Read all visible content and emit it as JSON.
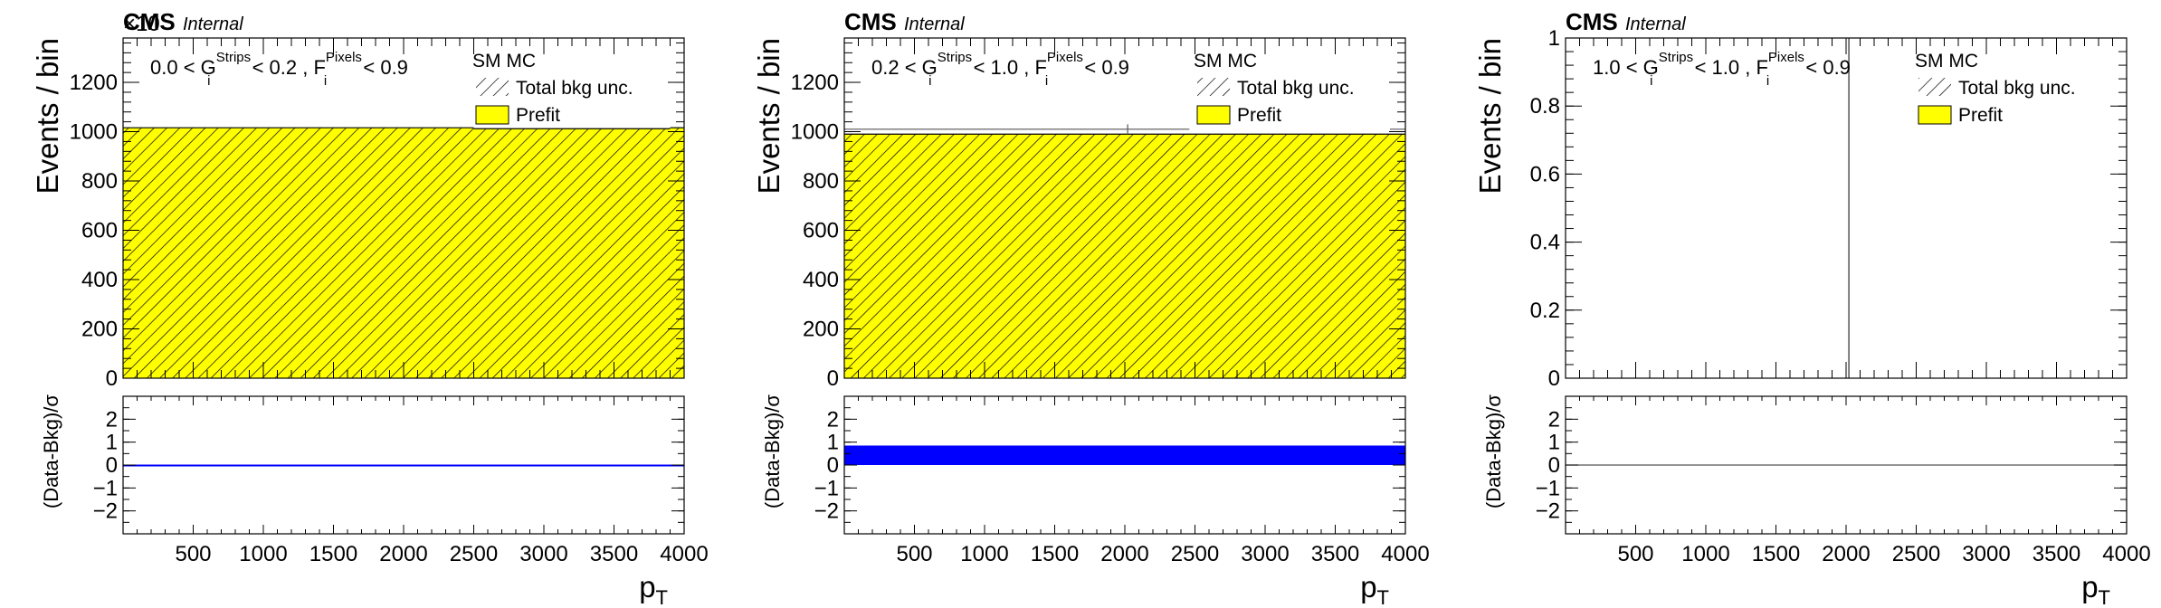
{
  "colors": {
    "prefit_fill": "#ffff00",
    "ratio_band": "#0000ff",
    "axis": "#000000",
    "bkg_line": "#555555"
  },
  "icons": {
    "hatch_legend": "hatch-swatch",
    "prefit_legend": "yellow-swatch"
  },
  "chart_data": [
    {
      "type": "bar",
      "panel": "left",
      "experiment": "CMS",
      "status": "Internal",
      "selection_label": {
        "lo": "0.0",
        "hi": "0.2",
        "g_sup": "Strips",
        "f_sup": "Pixels",
        "f_cut": "0.9",
        "lt": "<",
        "g_base": "G",
        "f_base": "F",
        "sub": "i",
        "sep": ","
      },
      "multiplier": "×10",
      "ylabel": "Events / bin",
      "xlabel_base": "p",
      "xlabel_sub": "T",
      "ylim": [
        0,
        1380
      ],
      "yticks": [
        "0",
        "200",
        "400",
        "600",
        "800",
        "1000",
        "1200"
      ],
      "xlim": [
        0,
        4000
      ],
      "xticks": [
        "500",
        "1000",
        "1500",
        "2000",
        "2500",
        "3000",
        "3500",
        "4000"
      ],
      "bins": [
        {
          "x0": 0,
          "x1": 2500,
          "value": 1016
        },
        {
          "x0": 2500,
          "x1": 3900,
          "value": 1012
        },
        {
          "x0": 3900,
          "x1": 4000,
          "value": 1016
        }
      ],
      "data_points": [],
      "vertical_line": null,
      "legend": {
        "title": "SM MC",
        "items": [
          "Total bkg unc.",
          "Prefit"
        ]
      },
      "ratio": {
        "ylabel": "(Data-Bkg)/σ",
        "ylim": [
          -3,
          3
        ],
        "yticks": [
          "2",
          "1",
          "0",
          "−1",
          "−2"
        ],
        "band": [
          0,
          0.02
        ],
        "band_x0": 0
      }
    },
    {
      "type": "bar",
      "panel": "middle",
      "experiment": "CMS",
      "status": "Internal",
      "selection_label": {
        "lo": "0.2",
        "hi": "1.0",
        "g_sup": "Strips",
        "f_sup": "Pixels",
        "f_cut": "0.9",
        "lt": "<",
        "g_base": "G",
        "f_base": "F",
        "sub": "i",
        "sep": ","
      },
      "multiplier": "",
      "ylabel": "Events / bin",
      "xlabel_base": "p",
      "xlabel_sub": "T",
      "ylim": [
        0,
        1380
      ],
      "yticks": [
        "0",
        "200",
        "400",
        "600",
        "800",
        "1000",
        "1200"
      ],
      "xlim": [
        0,
        4000
      ],
      "xticks": [
        "500",
        "1000",
        "1500",
        "2000",
        "2500",
        "3000",
        "3500",
        "4000"
      ],
      "bins": [
        {
          "x0": 0,
          "x1": 4000,
          "value": 990
        }
      ],
      "data_points": [
        {
          "x0": 0,
          "x1": 2460,
          "y": 1010,
          "ylo": 990,
          "yhi": 1030,
          "xc": 2020
        },
        {
          "x0": 3890,
          "x1": 4000,
          "y": 1010,
          "ylo": 1010,
          "yhi": 1010,
          "xc": 3945
        }
      ],
      "vertical_line": null,
      "legend": {
        "title": "SM MC",
        "items": [
          "Total bkg unc.",
          "Prefit"
        ]
      },
      "ratio": {
        "ylabel": "(Data-Bkg)/σ",
        "ylim": [
          -3,
          3
        ],
        "yticks": [
          "2",
          "1",
          "0",
          "−1",
          "−2"
        ],
        "band": [
          0,
          0.85
        ],
        "band_x0": 0
      }
    },
    {
      "type": "bar",
      "panel": "right",
      "experiment": "CMS",
      "status": "Internal",
      "selection_label": {
        "lo": "1.0",
        "hi": "1.0",
        "g_sup": "Strips",
        "f_sup": "Pixels",
        "f_cut": "0.9",
        "lt": "<",
        "g_base": "G",
        "f_base": "F",
        "sub": "i",
        "sep": ","
      },
      "multiplier": "",
      "ylabel": "Events / bin",
      "xlabel_base": "p",
      "xlabel_sub": "T",
      "ylim": [
        0,
        1
      ],
      "yticks": [
        "0",
        "0.2",
        "0.4",
        "0.6",
        "0.8",
        "1"
      ],
      "xlim": [
        0,
        4000
      ],
      "xticks": [
        "500",
        "1000",
        "1500",
        "2000",
        "2500",
        "3000",
        "3500",
        "4000"
      ],
      "bins": [],
      "data_points": [],
      "vertical_line": 2020,
      "legend": {
        "title": "SM MC",
        "items": [
          "Total bkg unc.",
          "Prefit"
        ]
      },
      "ratio": {
        "ylabel": "(Data-Bkg)/σ",
        "ylim": [
          -3,
          3
        ],
        "yticks": [
          "2",
          "1",
          "0",
          "−1",
          "−2"
        ],
        "band": null,
        "band_x0": 0
      }
    }
  ]
}
